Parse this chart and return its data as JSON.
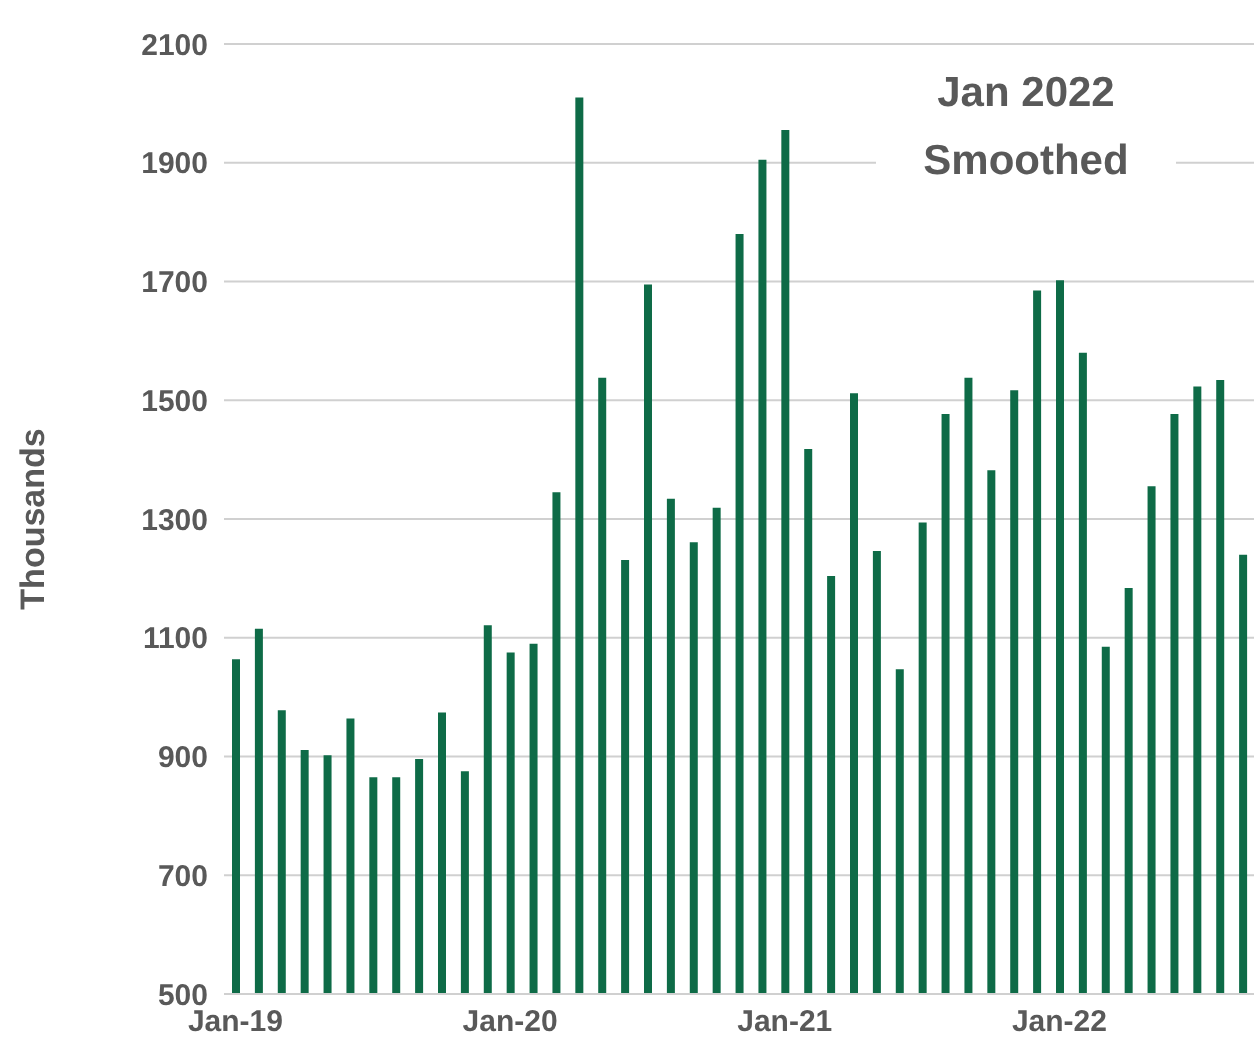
{
  "chart_data": {
    "type": "bar",
    "ylabel": "Thousands",
    "annotations": [
      "Jan 2022\nSmoothed"
    ],
    "categories": [
      "Jan-19",
      null,
      null,
      null,
      null,
      null,
      null,
      null,
      null,
      null,
      null,
      null,
      "Jan-20",
      null,
      null,
      null,
      null,
      null,
      null,
      null,
      null,
      null,
      null,
      null,
      "Jan-21",
      null,
      null,
      null,
      null,
      null,
      null,
      null,
      null,
      null,
      null,
      null,
      "Jan-22",
      null,
      null,
      null,
      null,
      null,
      null,
      null,
      null
    ],
    "values": [
      1064,
      1115,
      978,
      911,
      902,
      964,
      865,
      865,
      896,
      974,
      875,
      1121,
      1075,
      1090,
      1345,
      2010,
      1538,
      1231,
      1695,
      1334,
      1261,
      1319,
      1780,
      1905,
      1955,
      1418,
      1204,
      1512,
      1246,
      1047,
      1294,
      1477,
      1538,
      1382,
      1517,
      1685,
      1702,
      1580,
      1085,
      1184,
      1355,
      1477,
      1523,
      1534,
      1240
    ],
    "color": "#0e6b47",
    "ylim": [
      500,
      2100
    ],
    "yticks": [
      500,
      700,
      900,
      1100,
      1300,
      1500,
      1700,
      1900,
      2100
    ],
    "grid": "y"
  }
}
